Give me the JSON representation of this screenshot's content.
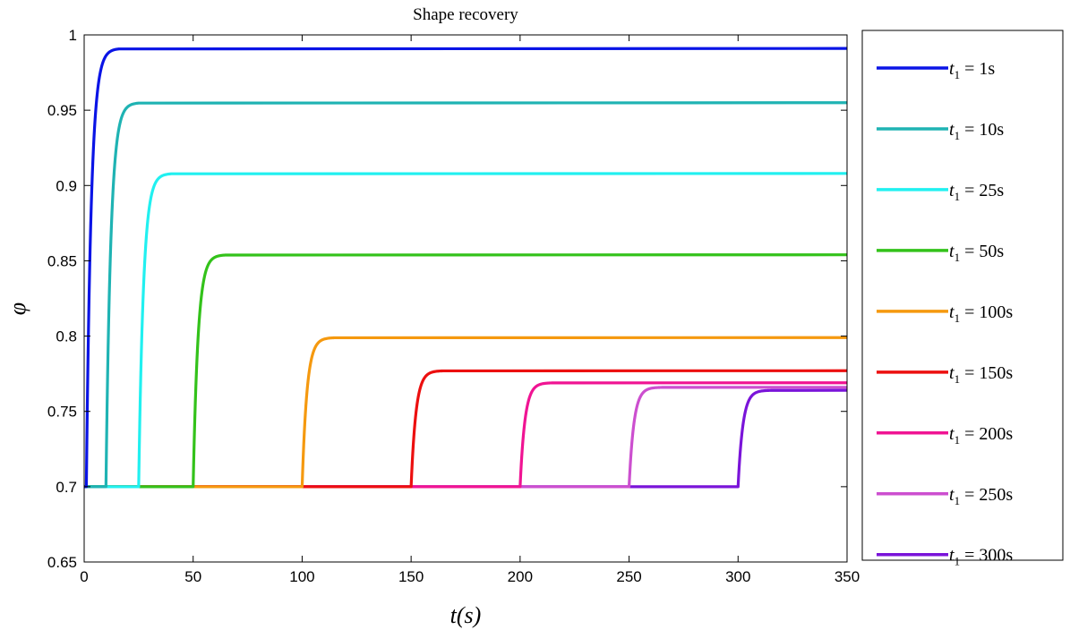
{
  "chart_data": {
    "type": "line",
    "title": "Shape recovery",
    "xlabel": "t(s)",
    "ylabel": "φ",
    "xlim": [
      0,
      350
    ],
    "ylim": [
      0.65,
      1
    ],
    "xticks": [
      0,
      50,
      100,
      150,
      200,
      250,
      300,
      350
    ],
    "yticks": [
      0.65,
      0.7,
      0.75,
      0.8,
      0.85,
      0.9,
      0.95,
      1
    ],
    "ytick_labels": [
      "0.65",
      "0.7",
      "0.75",
      "0.8",
      "0.85",
      "0.9",
      "0.95",
      "1"
    ],
    "grid": false,
    "legend_position": "right-outside",
    "baseline": 0.7,
    "series": [
      {
        "name": "t1 = 1s",
        "legend_main": "t",
        "legend_sub": "1",
        "legend_rest": " = 1s",
        "t1": 1,
        "plateau": 0.991,
        "color": "#0a14e6"
      },
      {
        "name": "t1 = 10s",
        "legend_main": "t",
        "legend_sub": "1",
        "legend_rest": " = 10s",
        "t1": 10,
        "plateau": 0.955,
        "color": "#1fb3b3"
      },
      {
        "name": "t1 = 25s",
        "legend_main": "t",
        "legend_sub": "1",
        "legend_rest": " = 25s",
        "t1": 25,
        "plateau": 0.908,
        "color": "#21f0f0"
      },
      {
        "name": "t1 = 50s",
        "legend_main": "t",
        "legend_sub": "1",
        "legend_rest": " = 50s",
        "t1": 50,
        "plateau": 0.854,
        "color": "#33c21a"
      },
      {
        "name": "t1 = 100s",
        "legend_main": "t",
        "legend_sub": "1",
        "legend_rest": " = 100s",
        "t1": 100,
        "plateau": 0.799,
        "color": "#f5990f"
      },
      {
        "name": "t1 = 150s",
        "legend_main": "t",
        "legend_sub": "1",
        "legend_rest": " = 150s",
        "t1": 150,
        "plateau": 0.777,
        "color": "#ec0f0f"
      },
      {
        "name": "t1 = 200s",
        "legend_main": "t",
        "legend_sub": "1",
        "legend_rest": " = 200s",
        "t1": 200,
        "plateau": 0.769,
        "color": "#f01493"
      },
      {
        "name": "t1 = 250s",
        "legend_main": "t",
        "legend_sub": "1",
        "legend_rest": " = 250s",
        "t1": 250,
        "plateau": 0.766,
        "color": "#cc4fcf"
      },
      {
        "name": "t1 = 300s",
        "legend_main": "t",
        "legend_sub": "1",
        "legend_rest": " = 300s",
        "t1": 300,
        "plateau": 0.764,
        "color": "#7a14d9"
      }
    ]
  }
}
